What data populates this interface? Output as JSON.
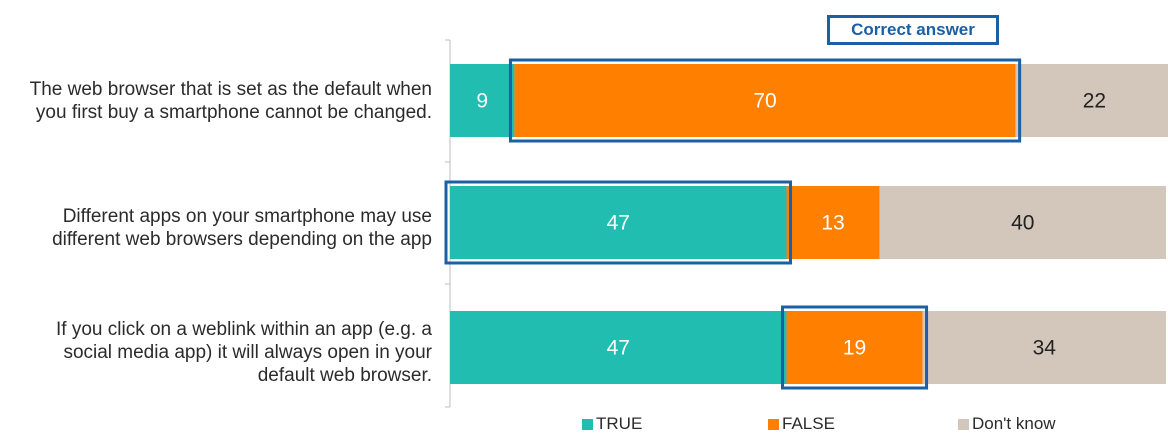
{
  "chart_data": {
    "type": "bar",
    "orientation": "horizontal",
    "stacked": true,
    "xlim": [
      0,
      100
    ],
    "categories": [
      "The web browser that is set as the default when\nyou first buy a smartphone cannot be changed.",
      "Different apps on your smartphone may use\ndifferent web browsers depending on the app",
      "If you click on a weblink within an app (e.g. a\nsocial media app) it will always open in your\ndefault web browser."
    ],
    "series": [
      {
        "name": "TRUE",
        "color": "#20bdb0",
        "label_color": "#ffffff",
        "values": [
          9,
          47,
          47
        ]
      },
      {
        "name": "FALSE",
        "color": "#ff7f00",
        "label_color": "#ffffff",
        "values": [
          70,
          13,
          19
        ]
      },
      {
        "name": "Don't know",
        "color": "#d3c6bb",
        "label_color": "#222222",
        "values": [
          22,
          40,
          34
        ]
      }
    ],
    "correct_answer": [
      "FALSE",
      "TRUE",
      "FALSE"
    ],
    "correct_answer_label": "Correct answer",
    "highlight_color": "#1b5fa5",
    "legend_position": "bottom",
    "grid": false
  }
}
